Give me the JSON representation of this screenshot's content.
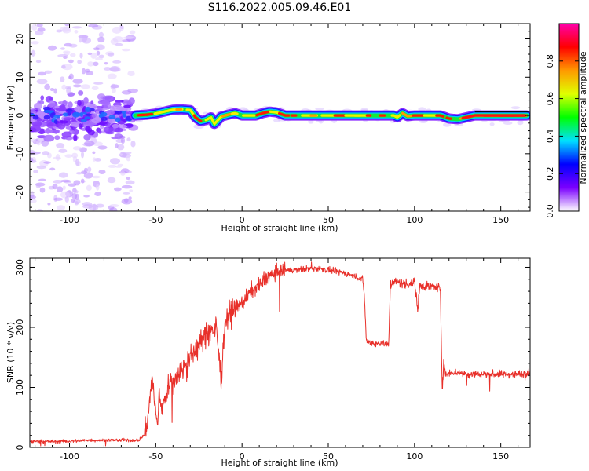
{
  "figure": {
    "title": "S116.2022.005.09.46.E01"
  },
  "chart_data": [
    {
      "type": "heatmap",
      "title": "S116.2022.005.09.46.E01",
      "xlabel": "Height of straight line (km)",
      "ylabel": "Frequency (Hz)",
      "xlim": [
        -123,
        167
      ],
      "ylim": [
        -25,
        24
      ],
      "xticks": [
        -100,
        -50,
        0,
        50,
        100,
        150
      ],
      "yticks": [
        -20,
        -10,
        0,
        10,
        20
      ],
      "ridge_frequency": {
        "x": [
          -62,
          -55,
          -50,
          -45,
          -40,
          -35,
          -30,
          -27,
          -24,
          -21,
          -18,
          -16,
          -12,
          -8,
          -4,
          0,
          4,
          8,
          12,
          16,
          20,
          25,
          30,
          40,
          50,
          60,
          70,
          80,
          88,
          90,
          93,
          96,
          100,
          105,
          110,
          115,
          120,
          125,
          130,
          135,
          140,
          150,
          160,
          165
        ],
        "y": [
          0.0,
          0.2,
          0.5,
          1.0,
          1.5,
          1.6,
          1.4,
          -0.5,
          -1.5,
          -1.2,
          -0.5,
          -2.2,
          -0.3,
          0.2,
          0.6,
          0.0,
          0.0,
          0.0,
          0.6,
          1.0,
          0.8,
          0.0,
          0.0,
          0.0,
          0.0,
          0.0,
          0.0,
          0.0,
          0.0,
          -0.5,
          0.6,
          -0.2,
          0.0,
          0.0,
          0.0,
          0.0,
          -0.8,
          -1.0,
          -0.5,
          0.0,
          0.0,
          0.0,
          0.0,
          0.0
        ]
      },
      "colorbar": {
        "label": "Normalized spectral amplitude",
        "range": [
          0.0,
          1.0
        ],
        "ticks": [
          "0.0",
          "0.2",
          "0.4",
          "0.6",
          "0.8"
        ],
        "colors": [
          "#ffffff",
          "#7b00ff",
          "#0000ff",
          "#00e0ff",
          "#00ff00",
          "#e0ff00",
          "#ff9900",
          "#ff0000",
          "#ff00aa"
        ]
      }
    },
    {
      "type": "line",
      "xlabel": "Height of straight line (km)",
      "ylabel": "SNR (10 * v/v)",
      "xlim": [
        -123,
        167
      ],
      "ylim": [
        0,
        315
      ],
      "xticks": [
        -100,
        -50,
        0,
        50,
        100,
        150
      ],
      "yticks": [
        0,
        100,
        200,
        300
      ],
      "color": "#e8302a",
      "x": [
        -123,
        -110,
        -100,
        -90,
        -80,
        -70,
        -60,
        -57,
        -55,
        -53,
        -52,
        -51,
        -50,
        -49,
        -48,
        -47,
        -45,
        -43,
        -40,
        -35,
        -30,
        -25,
        -20,
        -15,
        -12,
        -10,
        -8,
        -5,
        0,
        5,
        10,
        15,
        20,
        25,
        30,
        35,
        40,
        45,
        50,
        55,
        60,
        65,
        70,
        71,
        72,
        73,
        75,
        78,
        80,
        83,
        85,
        86,
        87,
        90,
        95,
        100,
        102,
        103,
        105,
        110,
        115,
        116,
        117,
        118,
        120,
        125,
        130,
        140,
        150,
        160,
        167
      ],
      "y": [
        10,
        10,
        10,
        12,
        12,
        12,
        12,
        20,
        40,
        90,
        120,
        80,
        60,
        30,
        100,
        60,
        80,
        100,
        110,
        130,
        150,
        170,
        190,
        200,
        110,
        210,
        220,
        230,
        240,
        260,
        270,
        285,
        290,
        295,
        295,
        297,
        298,
        298,
        295,
        293,
        290,
        285,
        280,
        250,
        180,
        175,
        175,
        172,
        175,
        172,
        170,
        270,
        275,
        275,
        272,
        275,
        230,
        270,
        270,
        268,
        265,
        100,
        140,
        120,
        125,
        125,
        122,
        122,
        122,
        122,
        125
      ]
    }
  ]
}
